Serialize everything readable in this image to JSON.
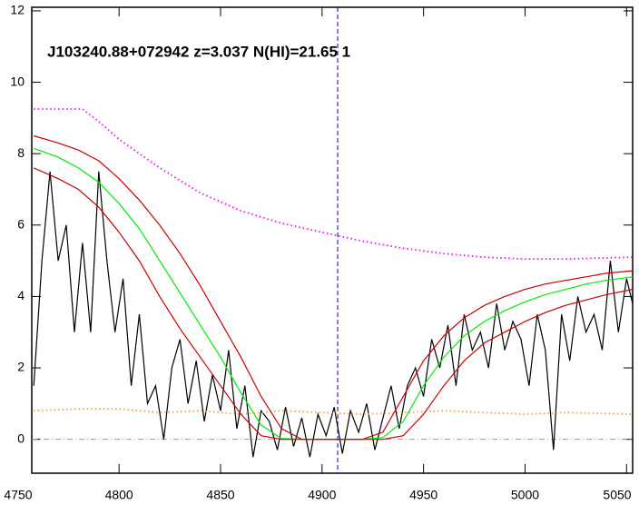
{
  "chart_data": {
    "type": "line",
    "title": "J103240.88+072942 z=3.037 N(HI)=21.65 1",
    "xlim": [
      4757,
      5053
    ],
    "ylim": [
      -0.95,
      12.1
    ],
    "xticks": [
      4750,
      4800,
      4850,
      4900,
      4950,
      5000,
      5050
    ],
    "yticks": [
      0,
      2,
      4,
      6,
      8,
      10,
      12
    ],
    "vline": 4907.7,
    "hline": 0,
    "series": [
      {
        "color": "#000000",
        "style": "solid",
        "x": [
          4758,
          4762,
          4766,
          4770,
          4774,
          4778,
          4782,
          4786,
          4790,
          4794,
          4798,
          4802,
          4806,
          4810,
          4814,
          4818,
          4822,
          4826,
          4830,
          4834,
          4838,
          4842,
          4846,
          4850,
          4854,
          4858,
          4862,
          4866,
          4870,
          4874,
          4878,
          4882,
          4886,
          4890,
          4894,
          4898,
          4902,
          4906,
          4910,
          4914,
          4918,
          4922,
          4926,
          4930,
          4934,
          4938,
          4942,
          4946,
          4950,
          4954,
          4958,
          4962,
          4966,
          4970,
          4974,
          4978,
          4982,
          4986,
          4990,
          4994,
          4998,
          5002,
          5006,
          5010,
          5014,
          5018,
          5022,
          5026,
          5030,
          5034,
          5038,
          5042,
          5046,
          5050,
          5053
        ],
        "values": [
          1.5,
          5,
          7.5,
          5,
          6,
          3,
          5.5,
          3,
          7.5,
          5,
          3,
          4.5,
          1.5,
          3.5,
          1,
          1.5,
          0,
          2,
          2.8,
          1,
          2.2,
          0.5,
          1.8,
          0.8,
          2.5,
          0.3,
          1.5,
          -0.5,
          0.8,
          0.5,
          -0.3,
          0.9,
          -0.2,
          0.6,
          -0.5,
          0.7,
          0.1,
          0.9,
          -0.4,
          0.8,
          0.2,
          1,
          -0.3,
          0.6,
          1.5,
          0.3,
          1.5,
          2,
          1.2,
          2.8,
          2,
          3.2,
          1.5,
          3.5,
          2.5,
          3,
          2,
          3.8,
          2.5,
          3.3,
          2.8,
          1.5,
          3.5,
          2.5,
          -0.3,
          3.5,
          2.2,
          4,
          3,
          3.5,
          2.5,
          5,
          3,
          4.5,
          3.8
        ]
      },
      {
        "color": "#ff00ff",
        "style": "dotted",
        "x": [
          4758,
          4782,
          4790,
          4800,
          4820,
          4840,
          4860,
          4880,
          4900,
          4920,
          4940,
          4960,
          4980,
          5000,
          5020,
          5053
        ],
        "values": [
          9.25,
          9.25,
          8.9,
          8.4,
          7.6,
          6.9,
          6.4,
          6.05,
          5.8,
          5.55,
          5.35,
          5.2,
          5.1,
          5.05,
          5.05,
          5.1
        ]
      },
      {
        "color": "#ff9933",
        "style": "dotted",
        "x": [
          4758,
          4780,
          4800,
          4820,
          4840,
          4860,
          4880,
          4900,
          4920,
          4940,
          4960,
          4980,
          5000,
          5020,
          5053
        ],
        "values": [
          0.8,
          0.85,
          0.85,
          0.75,
          0.8,
          0.7,
          0.8,
          0.75,
          0.7,
          0.75,
          0.8,
          0.75,
          0.7,
          0.75,
          0.7
        ]
      },
      {
        "color": "#00ee00",
        "style": "solid",
        "x": [
          4758,
          4770,
          4780,
          4790,
          4800,
          4810,
          4820,
          4830,
          4840,
          4850,
          4860,
          4870,
          4880,
          4890,
          4900,
          4910,
          4920,
          4930,
          4940,
          4950,
          4960,
          4970,
          4980,
          4990,
          5000,
          5010,
          5020,
          5030,
          5040,
          5053
        ],
        "values": [
          8.15,
          7.9,
          7.6,
          7.2,
          6.6,
          5.9,
          5.0,
          4.1,
          3.2,
          2.3,
          1.3,
          0.4,
          0.02,
          0,
          0,
          0,
          0,
          0.05,
          0.5,
          1.5,
          2.3,
          2.9,
          3.3,
          3.6,
          3.85,
          4.05,
          4.2,
          4.35,
          4.45,
          4.55
        ]
      },
      {
        "color": "#cc0000",
        "style": "solid",
        "x": [
          4758,
          4770,
          4780,
          4790,
          4800,
          4810,
          4820,
          4830,
          4840,
          4850,
          4860,
          4870,
          4880,
          4890,
          4900,
          4910,
          4920,
          4930,
          4940,
          4950,
          4960,
          4970,
          4980,
          4990,
          5000,
          5010,
          5020,
          5030,
          5040,
          5053
        ],
        "values": [
          8.5,
          8.3,
          8.1,
          7.8,
          7.3,
          6.7,
          6.0,
          5.2,
          4.3,
          3.3,
          2.3,
          1.2,
          0.3,
          0,
          0,
          0,
          0,
          0.2,
          1.2,
          2.2,
          2.9,
          3.4,
          3.75,
          4.0,
          4.2,
          4.35,
          4.45,
          4.55,
          4.65,
          4.72
        ]
      },
      {
        "color": "#cc0000",
        "style": "solid",
        "x": [
          4758,
          4770,
          4780,
          4790,
          4800,
          4810,
          4820,
          4830,
          4840,
          4850,
          4860,
          4870,
          4880,
          4890,
          4900,
          4910,
          4920,
          4930,
          4940,
          4950,
          4960,
          4970,
          4980,
          4990,
          5000,
          5010,
          5020,
          5030,
          5040,
          5053
        ],
        "values": [
          7.6,
          7.3,
          7.0,
          6.5,
          5.8,
          5.0,
          4.0,
          3.1,
          2.3,
          1.5,
          0.7,
          0.1,
          0,
          0,
          0,
          0,
          0,
          0,
          0.1,
          0.7,
          1.5,
          2.2,
          2.7,
          3.0,
          3.3,
          3.55,
          3.75,
          3.9,
          4.05,
          4.2
        ]
      }
    ]
  }
}
